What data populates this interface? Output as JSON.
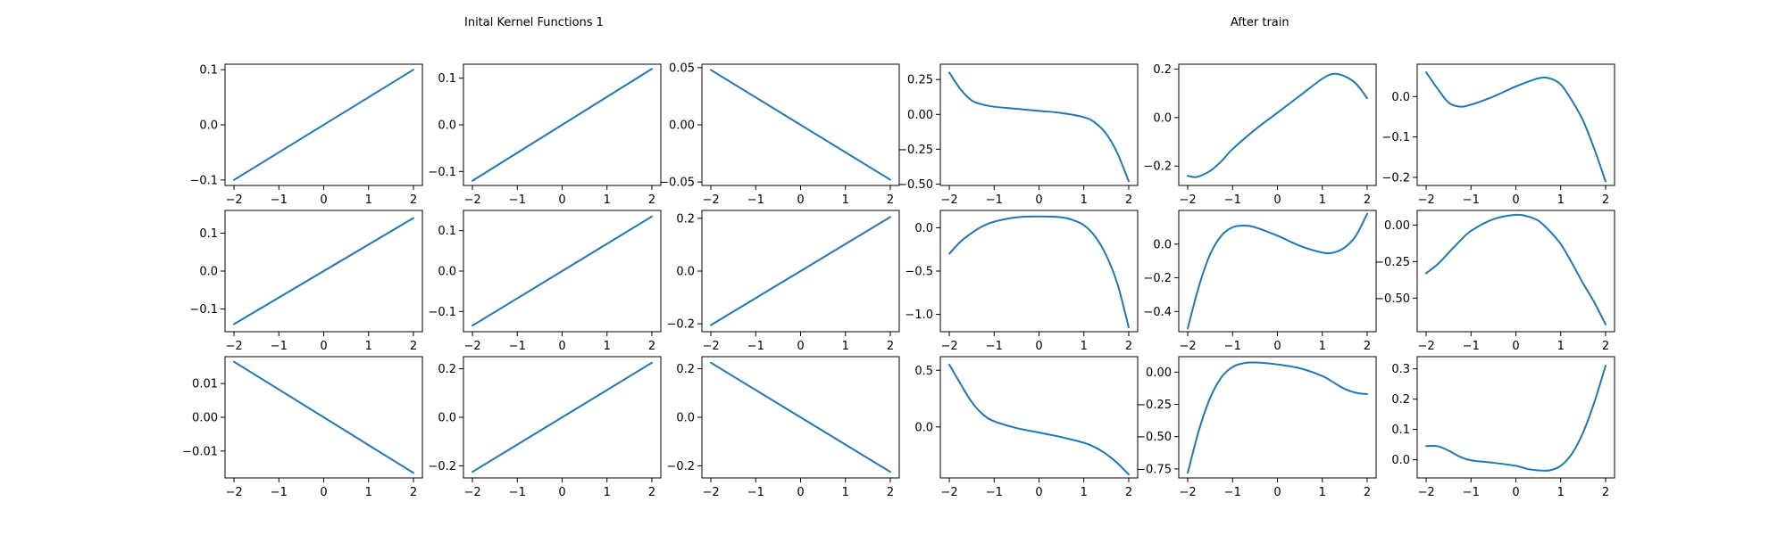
{
  "figure": {
    "titles": {
      "left": "Inital Kernel Functions 1",
      "right": "After train"
    },
    "line_color": "#1f77b4"
  },
  "chart_data": [
    {
      "type": "line",
      "ylim": [
        -0.11,
        0.11
      ],
      "yticks": [
        -0.1,
        0.0,
        0.1
      ],
      "ytick_labels": [
        "−0.1",
        "0.0",
        "0.1"
      ],
      "xticks": [
        -2,
        -1,
        0,
        1,
        2
      ],
      "xtick_labels": [
        "−2",
        "−1",
        "0",
        "1",
        "2"
      ],
      "xlim": [
        -2.2,
        2.2
      ],
      "series": [
        {
          "x": [
            -2,
            2
          ],
          "y": [
            -0.1,
            0.1
          ]
        }
      ]
    },
    {
      "type": "line",
      "ylim": [
        -0.13,
        0.13
      ],
      "yticks": [
        -0.1,
        0.0,
        0.1
      ],
      "ytick_labels": [
        "−0.1",
        "0.0",
        "0.1"
      ],
      "xticks": [
        -2,
        -1,
        0,
        1,
        2
      ],
      "xtick_labels": [
        "−2",
        "−1",
        "0",
        "1",
        "2"
      ],
      "xlim": [
        -2.2,
        2.2
      ],
      "series": [
        {
          "x": [
            -2,
            2
          ],
          "y": [
            -0.12,
            0.12
          ]
        }
      ]
    },
    {
      "type": "line",
      "ylim": [
        -0.053,
        0.053
      ],
      "yticks": [
        -0.05,
        0.0,
        0.05
      ],
      "ytick_labels": [
        "−0.05",
        "0.00",
        "0.05"
      ],
      "xticks": [
        -2,
        -1,
        0,
        1,
        2
      ],
      "xtick_labels": [
        "−2",
        "−1",
        "0",
        "1",
        "2"
      ],
      "xlim": [
        -2.2,
        2.2
      ],
      "series": [
        {
          "x": [
            -2,
            2
          ],
          "y": [
            0.048,
            -0.048
          ]
        }
      ]
    },
    {
      "type": "line",
      "ylim": [
        -0.51,
        0.36
      ],
      "yticks": [
        -0.5,
        -0.25,
        0.0,
        0.25
      ],
      "ytick_labels": [
        "−0.50",
        "−0.25",
        "0.00",
        "0.25"
      ],
      "xticks": [
        -2,
        -1,
        0,
        1,
        2
      ],
      "xtick_labels": [
        "−2",
        "−1",
        "0",
        "1",
        "2"
      ],
      "xlim": [
        -2.2,
        2.2
      ],
      "series": [
        {
          "x": [
            -2,
            -1.75,
            -1.5,
            -1.25,
            -1,
            -0.5,
            0,
            0.5,
            1,
            1.25,
            1.5,
            1.75,
            2
          ],
          "y": [
            0.3,
            0.18,
            0.1,
            0.07,
            0.055,
            0.04,
            0.025,
            0.01,
            -0.02,
            -0.06,
            -0.14,
            -0.28,
            -0.48
          ]
        }
      ]
    },
    {
      "type": "line",
      "ylim": [
        -0.28,
        0.22
      ],
      "yticks": [
        -0.2,
        0.0,
        0.2
      ],
      "ytick_labels": [
        "−0.2",
        "0.0",
        "0.2"
      ],
      "xticks": [
        -2,
        -1,
        0,
        1,
        2
      ],
      "xtick_labels": [
        "−2",
        "−1",
        "0",
        "1",
        "2"
      ],
      "xlim": [
        -2.2,
        2.2
      ],
      "series": [
        {
          "x": [
            -2,
            -1.8,
            -1.5,
            -1.25,
            -1,
            -0.5,
            0,
            0.5,
            1,
            1.25,
            1.5,
            1.75,
            2
          ],
          "y": [
            -0.24,
            -0.245,
            -0.22,
            -0.18,
            -0.13,
            -0.05,
            0.02,
            0.09,
            0.16,
            0.18,
            0.17,
            0.14,
            0.08
          ]
        }
      ]
    },
    {
      "type": "line",
      "ylim": [
        -0.22,
        0.08
      ],
      "yticks": [
        -0.2,
        -0.1,
        0.0
      ],
      "ytick_labels": [
        "−0.2",
        "−0.1",
        "0.0"
      ],
      "xticks": [
        -2,
        -1,
        0,
        1,
        2
      ],
      "xtick_labels": [
        "−2",
        "−1",
        "0",
        "1",
        "2"
      ],
      "xlim": [
        -2.2,
        2.2
      ],
      "series": [
        {
          "x": [
            -2,
            -1.75,
            -1.5,
            -1.25,
            -1,
            -0.5,
            0,
            0.5,
            0.75,
            1,
            1.25,
            1.5,
            1.75,
            2
          ],
          "y": [
            0.06,
            0.02,
            -0.015,
            -0.025,
            -0.02,
            0.0,
            0.025,
            0.045,
            0.045,
            0.03,
            -0.01,
            -0.06,
            -0.13,
            -0.21
          ]
        }
      ]
    },
    {
      "type": "line",
      "ylim": [
        -0.16,
        0.16
      ],
      "yticks": [
        -0.1,
        0.0,
        0.1
      ],
      "ytick_labels": [
        "−0.1",
        "0.0",
        "0.1"
      ],
      "xticks": [
        -2,
        -1,
        0,
        1,
        2
      ],
      "xtick_labels": [
        "−2",
        "−1",
        "0",
        "1",
        "2"
      ],
      "xlim": [
        -2.2,
        2.2
      ],
      "series": [
        {
          "x": [
            -2,
            2
          ],
          "y": [
            -0.14,
            0.14
          ]
        }
      ]
    },
    {
      "type": "line",
      "ylim": [
        -0.15,
        0.15
      ],
      "yticks": [
        -0.1,
        0.0,
        0.1
      ],
      "ytick_labels": [
        "−0.1",
        "0.0",
        "0.1"
      ],
      "xticks": [
        -2,
        -1,
        0,
        1,
        2
      ],
      "xtick_labels": [
        "−2",
        "−1",
        "0",
        "1",
        "2"
      ],
      "xlim": [
        -2.2,
        2.2
      ],
      "series": [
        {
          "x": [
            -2,
            2
          ],
          "y": [
            -0.135,
            0.135
          ]
        }
      ]
    },
    {
      "type": "line",
      "ylim": [
        -0.23,
        0.23
      ],
      "yticks": [
        -0.2,
        0.0,
        0.2
      ],
      "ytick_labels": [
        "−0.2",
        "0.0",
        "0.2"
      ],
      "xticks": [
        -2,
        -1,
        0,
        1,
        2
      ],
      "xtick_labels": [
        "−2",
        "−1",
        "0",
        "1",
        "2"
      ],
      "xlim": [
        -2.2,
        2.2
      ],
      "series": [
        {
          "x": [
            -2,
            2
          ],
          "y": [
            -0.205,
            0.205
          ]
        }
      ]
    },
    {
      "type": "line",
      "ylim": [
        -1.2,
        0.2
      ],
      "yticks": [
        -1.0,
        -0.5,
        0.0
      ],
      "ytick_labels": [
        "−1.0",
        "−0.5",
        "0.0"
      ],
      "xticks": [
        -2,
        -1,
        0,
        1,
        2
      ],
      "xtick_labels": [
        "−2",
        "−1",
        "0",
        "1",
        "2"
      ],
      "xlim": [
        -2.2,
        2.2
      ],
      "series": [
        {
          "x": [
            -2,
            -1.75,
            -1.5,
            -1.25,
            -1,
            -0.5,
            0,
            0.5,
            0.75,
            1,
            1.25,
            1.5,
            1.75,
            2
          ],
          "y": [
            -0.3,
            -0.16,
            -0.06,
            0.02,
            0.07,
            0.12,
            0.13,
            0.12,
            0.09,
            0.03,
            -0.1,
            -0.32,
            -0.65,
            -1.15
          ]
        }
      ]
    },
    {
      "type": "line",
      "ylim": [
        -0.52,
        0.2
      ],
      "yticks": [
        -0.4,
        -0.2,
        0.0
      ],
      "ytick_labels": [
        "−0.4",
        "−0.2",
        "0.0"
      ],
      "xticks": [
        -2,
        -1,
        0,
        1,
        2
      ],
      "xtick_labels": [
        "−2",
        "−1",
        "0",
        "1",
        "2"
      ],
      "xlim": [
        -2.2,
        2.2
      ],
      "series": [
        {
          "x": [
            -2,
            -1.75,
            -1.5,
            -1.25,
            -1,
            -0.75,
            -0.5,
            0,
            0.5,
            1,
            1.25,
            1.5,
            1.75,
            2
          ],
          "y": [
            -0.5,
            -0.25,
            -0.06,
            0.05,
            0.1,
            0.11,
            0.1,
            0.05,
            -0.01,
            -0.05,
            -0.05,
            -0.02,
            0.05,
            0.18
          ]
        }
      ]
    },
    {
      "type": "line",
      "ylim": [
        -0.73,
        0.1
      ],
      "yticks": [
        -0.5,
        -0.25,
        0.0
      ],
      "ytick_labels": [
        "−0.50",
        "−0.25",
        "0.00"
      ],
      "xticks": [
        -2,
        -1,
        0,
        1,
        2
      ],
      "xtick_labels": [
        "−2",
        "−1",
        "0",
        "1",
        "2"
      ],
      "xlim": [
        -2.2,
        2.2
      ],
      "series": [
        {
          "x": [
            -2,
            -1.75,
            -1.5,
            -1.25,
            -1,
            -0.5,
            0,
            0.25,
            0.5,
            0.75,
            1,
            1.25,
            1.5,
            1.75,
            2
          ],
          "y": [
            -0.33,
            -0.27,
            -0.19,
            -0.11,
            -0.04,
            0.04,
            0.07,
            0.06,
            0.03,
            -0.04,
            -0.13,
            -0.26,
            -0.4,
            -0.53,
            -0.68
          ]
        }
      ]
    },
    {
      "type": "line",
      "ylim": [
        -0.018,
        0.018
      ],
      "yticks": [
        -0.01,
        0.0,
        0.01
      ],
      "ytick_labels": [
        "−0.01",
        "0.00",
        "0.01"
      ],
      "xticks": [
        -2,
        -1,
        0,
        1,
        2
      ],
      "xtick_labels": [
        "−2",
        "−1",
        "0",
        "1",
        "2"
      ],
      "xlim": [
        -2.2,
        2.2
      ],
      "series": [
        {
          "x": [
            -2,
            2
          ],
          "y": [
            0.0165,
            -0.0165
          ]
        }
      ]
    },
    {
      "type": "line",
      "ylim": [
        -0.25,
        0.25
      ],
      "yticks": [
        -0.2,
        0.0,
        0.2
      ],
      "ytick_labels": [
        "−0.2",
        "0.0",
        "0.2"
      ],
      "xticks": [
        -2,
        -1,
        0,
        1,
        2
      ],
      "xtick_labels": [
        "−2",
        "−1",
        "0",
        "1",
        "2"
      ],
      "xlim": [
        -2.2,
        2.2
      ],
      "series": [
        {
          "x": [
            -2,
            2
          ],
          "y": [
            -0.225,
            0.225
          ]
        }
      ]
    },
    {
      "type": "line",
      "ylim": [
        -0.25,
        0.25
      ],
      "yticks": [
        -0.2,
        0.0,
        0.2
      ],
      "ytick_labels": [
        "−0.2",
        "0.0",
        "0.2"
      ],
      "xticks": [
        -2,
        -1,
        0,
        1,
        2
      ],
      "xtick_labels": [
        "−2",
        "−1",
        "0",
        "1",
        "2"
      ],
      "xlim": [
        -2.2,
        2.2
      ],
      "series": [
        {
          "x": [
            -2,
            2
          ],
          "y": [
            0.225,
            -0.225
          ]
        }
      ]
    },
    {
      "type": "line",
      "ylim": [
        -0.45,
        0.62
      ],
      "yticks": [
        0.0,
        0.5
      ],
      "ytick_labels": [
        "0.0",
        "0.5"
      ],
      "xticks": [
        -2,
        -1,
        0,
        1,
        2
      ],
      "xtick_labels": [
        "−2",
        "−1",
        "0",
        "1",
        "2"
      ],
      "xlim": [
        -2.2,
        2.2
      ],
      "series": [
        {
          "x": [
            -2,
            -1.75,
            -1.5,
            -1.25,
            -1,
            -0.5,
            0,
            0.5,
            1,
            1.25,
            1.5,
            1.75,
            2
          ],
          "y": [
            0.55,
            0.38,
            0.22,
            0.11,
            0.05,
            -0.01,
            -0.05,
            -0.09,
            -0.14,
            -0.18,
            -0.24,
            -0.32,
            -0.42
          ]
        }
      ]
    },
    {
      "type": "line",
      "ylim": [
        -0.82,
        0.12
      ],
      "yticks": [
        -0.75,
        -0.5,
        -0.25,
        0.0
      ],
      "ytick_labels": [
        "−0.75",
        "−0.50",
        "−0.25",
        "0.00"
      ],
      "xticks": [
        -2,
        -1,
        0,
        1,
        2
      ],
      "xtick_labels": [
        "−2",
        "−1",
        "0",
        "1",
        "2"
      ],
      "xlim": [
        -2.2,
        2.2
      ],
      "series": [
        {
          "x": [
            -2,
            -1.75,
            -1.5,
            -1.25,
            -1,
            -0.75,
            -0.5,
            0,
            0.5,
            1,
            1.25,
            1.5,
            1.75,
            2
          ],
          "y": [
            -0.78,
            -0.45,
            -0.2,
            -0.04,
            0.04,
            0.07,
            0.075,
            0.06,
            0.03,
            -0.03,
            -0.08,
            -0.13,
            -0.16,
            -0.17
          ]
        }
      ]
    },
    {
      "type": "line",
      "ylim": [
        -0.06,
        0.34
      ],
      "yticks": [
        0.0,
        0.1,
        0.2,
        0.3
      ],
      "ytick_labels": [
        "0.0",
        "0.1",
        "0.2",
        "0.3"
      ],
      "xticks": [
        -2,
        -1,
        0,
        1,
        2
      ],
      "xtick_labels": [
        "−2",
        "−1",
        "0",
        "1",
        "2"
      ],
      "xlim": [
        -2.2,
        2.2
      ],
      "series": [
        {
          "x": [
            -2,
            -1.75,
            -1.5,
            -1.25,
            -1,
            -0.5,
            0,
            0.25,
            0.5,
            0.75,
            1,
            1.25,
            1.5,
            1.75,
            2
          ],
          "y": [
            0.045,
            0.045,
            0.03,
            0.01,
            -0.002,
            -0.01,
            -0.02,
            -0.03,
            -0.035,
            -0.035,
            -0.02,
            0.02,
            0.09,
            0.19,
            0.31
          ]
        }
      ]
    }
  ]
}
